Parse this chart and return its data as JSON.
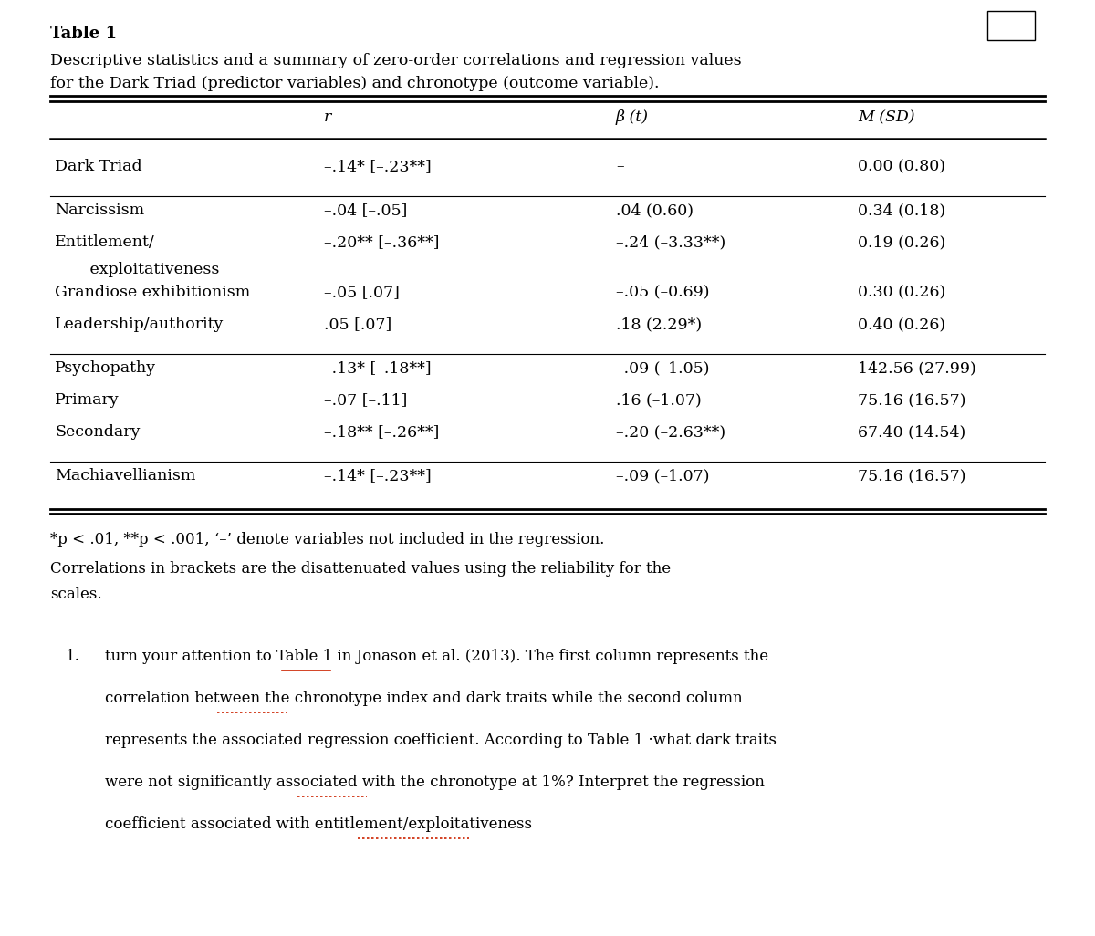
{
  "title_bold": "Table 1",
  "title_desc": "Descriptive statistics and a summary of zero-order correlations and regression values\nfor the Dark Triad (predictor variables) and chronotype (outcome variable).",
  "col_header_r": "r",
  "col_header_beta": "β (t)",
  "col_header_msd": "M (SD)",
  "rows": [
    {
      "label1": "Dark Triad",
      "label2": null,
      "r": "–.14* [–.23**]",
      "beta": "–",
      "msd": "0.00 (0.80)",
      "group_sep_before": true
    },
    {
      "label1": "Narcissism",
      "label2": null,
      "r": "–.04 [–.05]",
      "beta": ".04 (0.60)",
      "msd": "0.34 (0.18)",
      "group_sep_before": true
    },
    {
      "label1": "Entitlement/",
      "label2": "   exploitativeness",
      "r": "–.20** [–.36**]",
      "beta": "–.24 (–3.33**)",
      "msd": "0.19 (0.26)",
      "group_sep_before": false
    },
    {
      "label1": "Grandiose exhibitionism",
      "label2": null,
      "r": "–.05 [.07]",
      "beta": "–.05 (–0.69)",
      "msd": "0.30 (0.26)",
      "group_sep_before": false
    },
    {
      "label1": "Leadership/authority",
      "label2": null,
      "r": ".05 [.07]",
      "beta": ".18 (2.29*)",
      "msd": "0.40 (0.26)",
      "group_sep_before": false
    },
    {
      "label1": "Psychopathy",
      "label2": null,
      "r": "–.13* [–.18**]",
      "beta": "–.09 (–1.05)",
      "msd": "142.56 (27.99)",
      "group_sep_before": true
    },
    {
      "label1": "Primary",
      "label2": null,
      "r": "–.07 [–.11]",
      "beta": ".16 (–1.07)",
      "msd": "75.16 (16.57)",
      "group_sep_before": false
    },
    {
      "label1": "Secondary",
      "label2": null,
      "r": "–.18** [–.26**]",
      "beta": "–.20 (–2.63**)",
      "msd": "67.40 (14.54)",
      "group_sep_before": false
    },
    {
      "label1": "Machiavellianism",
      "label2": null,
      "r": "–.14* [–.23**]",
      "beta": "–.09 (–1.07)",
      "msd": "75.16 (16.57)",
      "group_sep_before": true
    }
  ],
  "footnote1": "*p < .01, **p < .001, ‘–’ denote variables not included in the regression.",
  "footnote2": "Correlations in brackets are the disattenuated values using the reliability for the",
  "footnote3": "scales.",
  "q_num": "1.",
  "q_lines": [
    "turn your attention to Table 1 in Jonason et al. (2013). The first column represents the",
    "correlation between the chronotype index and dark traits while the second column",
    "represents the associated regression coefficient. According to Table 1 ·what dark traits",
    "were not significantly associated with the chronotype at 1%? Interpret the regression",
    "coefficient associated with entitlement/exploitativeness"
  ],
  "underline_words": {
    "Jonason": [
      0,
      "solid"
    ],
    "chronotype_index": [
      1,
      "dotted"
    ],
    "chronotype_at": [
      3,
      "dotted"
    ],
    "exploitativeness": [
      4,
      "dotted"
    ]
  },
  "bg_color": "#ffffff",
  "text_color": "#000000"
}
